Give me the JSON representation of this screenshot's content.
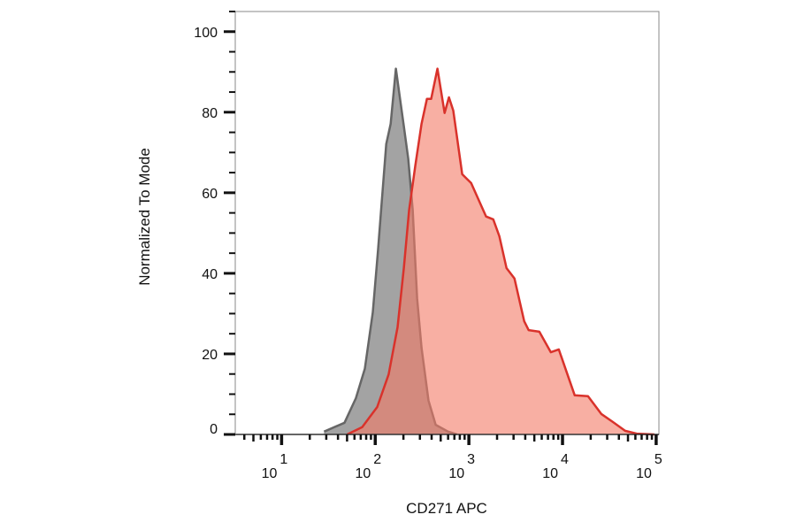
{
  "chart_data": {
    "type": "area",
    "title": "",
    "xlabel": "CD271 APC",
    "ylabel": "Normalized To Mode",
    "xscale": "log",
    "xlim": [
      3.2,
      107000
    ],
    "ylim": [
      0,
      105
    ],
    "x_ticks": [
      {
        "value": 10,
        "base": "10",
        "exp": "1"
      },
      {
        "value": 100,
        "base": "10",
        "exp": "2"
      },
      {
        "value": 1000,
        "base": "10",
        "exp": "3"
      },
      {
        "value": 10000,
        "base": "10",
        "exp": "4"
      },
      {
        "value": 100000,
        "base": "10",
        "exp": "5"
      }
    ],
    "y_ticks": [
      {
        "value": 0,
        "label": "0"
      },
      {
        "value": 20,
        "label": "20"
      },
      {
        "value": 40,
        "label": "40"
      },
      {
        "value": 60,
        "label": "60"
      },
      {
        "value": 80,
        "label": "80"
      },
      {
        "value": 100,
        "label": "100"
      }
    ],
    "grid": false,
    "legend": "none",
    "series": [
      {
        "fill": "#a3a3a3",
        "stroke": "#666666",
        "x": [
          28.4,
          46.9,
          62.2,
          77.4,
          94.2,
          107,
          117,
          131,
          146,
          166,
          202,
          225,
          251,
          280,
          312,
          371,
          442,
          599,
          745
        ],
        "y": [
          0.7,
          2.9,
          9.0,
          16.3,
          30.3,
          45.7,
          57.4,
          72.1,
          77.1,
          90.8,
          76.5,
          68.4,
          55.8,
          33.8,
          21.5,
          8.4,
          2.4,
          0.7,
          0
        ]
      },
      {
        "fill": "#f47a66",
        "stroke": "#d9322b",
        "x": [
          50.1,
          72.6,
          105,
          139,
          173,
          202,
          230,
          268,
          312,
          356,
          396,
          462,
          550,
          612,
          682,
          849,
          946,
          1057,
          1528,
          1820,
          2118,
          2522,
          3070,
          3899,
          4345,
          5649,
          7499,
          9120,
          13490,
          18710,
          25940,
          34440,
          46670,
          61940,
          95700
        ],
        "y": [
          0,
          1.8,
          6.8,
          14.9,
          26.6,
          41.3,
          55.8,
          66.8,
          77.1,
          83.3,
          83.3,
          90.8,
          79.8,
          83.7,
          80.4,
          64.6,
          63.5,
          62.4,
          54.1,
          53.4,
          49.2,
          41.3,
          38.7,
          28.1,
          25.9,
          25.5,
          20.4,
          21.1,
          9.7,
          9.5,
          5.1,
          3.1,
          0.9,
          0.2,
          0
        ]
      }
    ]
  }
}
